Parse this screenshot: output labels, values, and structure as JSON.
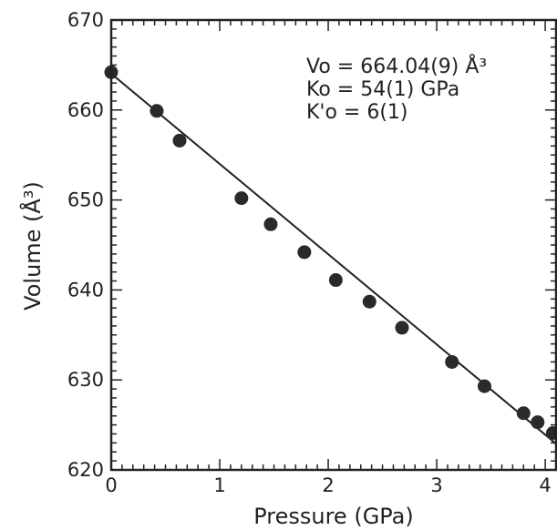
{
  "chart_data": {
    "type": "scatter",
    "xlabel": "Pressure (GPa)",
    "ylabel": "Volume (Å³)",
    "xlim": [
      0,
      4.1
    ],
    "ylim": [
      620,
      670
    ],
    "x_ticks": [
      0,
      1,
      2,
      3,
      4
    ],
    "y_ticks": [
      620,
      630,
      640,
      650,
      660,
      670
    ],
    "grid": false,
    "annotations": [
      "Vo = 664.04(9) Å³",
      "Ko = 54(1) GPa",
      "K'o = 6(1)"
    ],
    "series": [
      {
        "x": [
          0.0,
          0.42,
          0.63,
          1.2,
          1.47,
          1.78,
          2.07,
          2.38,
          2.68,
          3.14,
          3.44,
          3.8,
          3.93,
          4.07
        ],
        "y": [
          664.2,
          659.9,
          656.6,
          650.2,
          647.3,
          644.2,
          641.1,
          638.7,
          635.8,
          632.0,
          629.3,
          626.3,
          625.3,
          624.1
        ]
      }
    ],
    "fit_line": {
      "x": [
        0.0,
        4.1
      ],
      "y": [
        664.04,
        622.9
      ]
    }
  }
}
